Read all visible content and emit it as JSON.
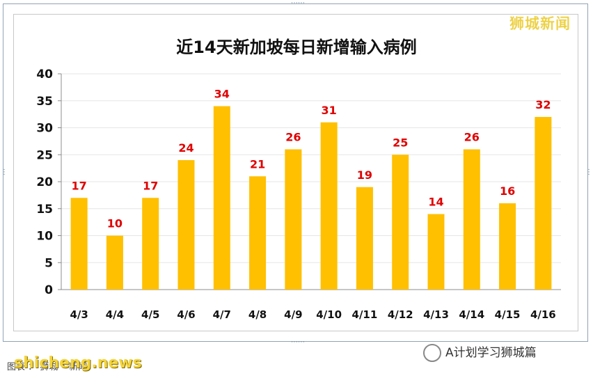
{
  "brand": "狮城新闻",
  "watermark": "A计划学习狮城篇",
  "site_text": "shicheng.news",
  "footer_small": "图表 ： 狮城 • 新闻",
  "colors": {
    "bar": "#FFC000",
    "label": "#E00000",
    "grid": "#e6e6e6"
  },
  "chart_data": {
    "type": "bar",
    "title": "近14天新加坡每日新增输入病例",
    "categories": [
      "4/3",
      "4/4",
      "4/5",
      "4/6",
      "4/7",
      "4/8",
      "4/9",
      "4/10",
      "4/11",
      "4/12",
      "4/13",
      "4/14",
      "4/15",
      "4/16"
    ],
    "values": [
      17,
      10,
      17,
      24,
      34,
      21,
      26,
      31,
      19,
      25,
      14,
      26,
      16,
      32
    ],
    "ylim": [
      0,
      40
    ],
    "yticks": [
      0,
      5,
      10,
      15,
      20,
      25,
      30,
      35,
      40
    ],
    "xlabel": "",
    "ylabel": "",
    "grid": true,
    "data_labels": true
  }
}
